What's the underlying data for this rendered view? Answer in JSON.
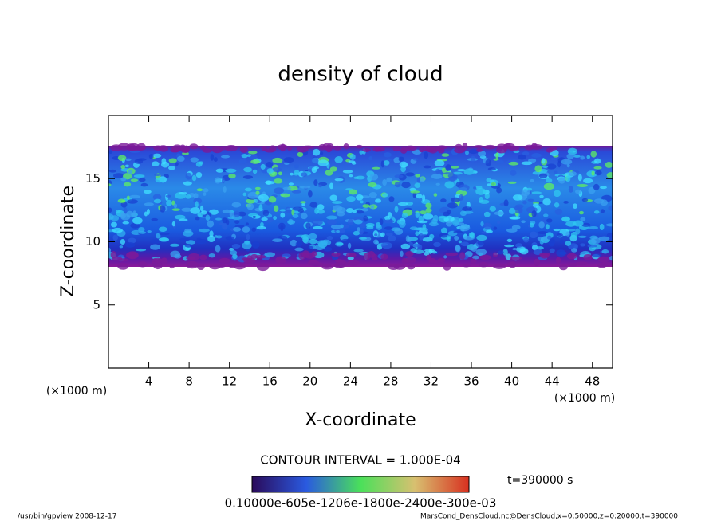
{
  "chart_data": {
    "type": "heatmap",
    "title": "density of cloud",
    "x_label": "X-coordinate",
    "y_label": "Z-coordinate",
    "x_unit": "(×1000 m)",
    "y_unit": "(×1000 m)",
    "xlim": [
      0,
      50
    ],
    "xticks": [
      4,
      8,
      12,
      16,
      20,
      24,
      28,
      32,
      36,
      40,
      44,
      48
    ],
    "ylim": [
      0,
      20
    ],
    "yticks": [
      5,
      10,
      15
    ],
    "contour_interval": "CONTOUR INTERVAL = 1.000E-04",
    "time_label": "t=390000 s",
    "colorbar_labels": "0.10000e-605e-1206e-1800e-2400e-300e-03",
    "footer_left": "/usr/bin/gpview   2008-12-17",
    "footer_right": "MarsCond_DensCloud.nc@DensCloud,x=0:50000,z=0:20000,t=390000"
  }
}
